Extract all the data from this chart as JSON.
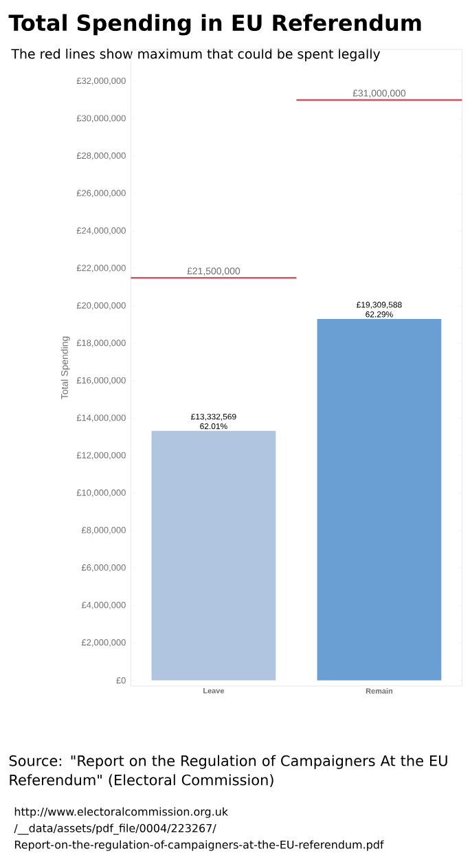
{
  "chart_data": {
    "type": "bar",
    "title": "Total Spending in EU Referendum",
    "subtitle": "The red lines show maximum that could be spent legally",
    "ylabel": "Total Spending",
    "categories": [
      "Leave",
      "Remain"
    ],
    "values": [
      13332569,
      19309588
    ],
    "colors": [
      "#b0c6e0",
      "#6a9fd4"
    ],
    "value_labels": [
      "£13,332,569 62.01%",
      "£19,309,588 62.29%"
    ],
    "ylim": [
      -300000,
      33700000
    ],
    "yticks": [
      {
        "value": 0,
        "label": "£0"
      },
      {
        "value": 2000000,
        "label": "£2,000,000"
      },
      {
        "value": 4000000,
        "label": "£4,000,000"
      },
      {
        "value": 6000000,
        "label": "£6,000,000"
      },
      {
        "value": 8000000,
        "label": "£8,000,000"
      },
      {
        "value": 10000000,
        "label": "£10,000,000"
      },
      {
        "value": 12000000,
        "label": "£12,000,000"
      },
      {
        "value": 14000000,
        "label": "£14,000,000"
      },
      {
        "value": 16000000,
        "label": "£16,000,000"
      },
      {
        "value": 18000000,
        "label": "£18,000,000"
      },
      {
        "value": 20000000,
        "label": "£20,000,000"
      },
      {
        "value": 22000000,
        "label": "£22,000,000"
      },
      {
        "value": 24000000,
        "label": "£24,000,000"
      },
      {
        "value": 26000000,
        "label": "£26,000,000"
      },
      {
        "value": 28000000,
        "label": "£28,000,000"
      },
      {
        "value": 30000000,
        "label": "£30,000,000"
      },
      {
        "value": 32000000,
        "label": "£32,000,000"
      }
    ],
    "ref_lines": [
      {
        "axis": "y",
        "value": 21500000,
        "label": "£21,500,000",
        "color": "#d05560"
      },
      {
        "axis": "y",
        "value": 31000000,
        "label": "£31,000,000",
        "color": "#d05560"
      }
    ],
    "annotations": [
      "Source: \"Report on the Regulation of Campaigners At the EU Referendum\" (Electoral Commission)",
      "http://www.electoralcommission.org.uk",
      "/__data/assets/pdf_file/0004/223267/",
      "Report-on-the-regulation-of-campaigners-at-the-EU-referendum.pdf"
    ]
  }
}
